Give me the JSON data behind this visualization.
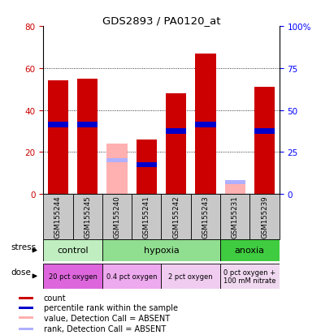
{
  "title": "GDS2893 / PA0120_at",
  "samples": [
    "GSM155244",
    "GSM155245",
    "GSM155240",
    "GSM155241",
    "GSM155242",
    "GSM155243",
    "GSM155231",
    "GSM155239"
  ],
  "count_values": [
    54,
    55,
    0,
    26,
    48,
    67,
    0,
    51
  ],
  "rank_values": [
    33,
    33,
    0,
    14,
    30,
    33,
    0,
    30
  ],
  "absent_count": [
    0,
    0,
    24,
    0,
    0,
    0,
    5,
    0
  ],
  "absent_rank": [
    0,
    0,
    16,
    0,
    0,
    0,
    5.5,
    0
  ],
  "ylim_left": [
    0,
    80
  ],
  "ylim_right": [
    0,
    100
  ],
  "yticks_left": [
    0,
    20,
    40,
    60,
    80
  ],
  "yticks_right": [
    0,
    25,
    50,
    75,
    100
  ],
  "ytick_labels_left": [
    "0",
    "20",
    "40",
    "60",
    "80"
  ],
  "ytick_labels_right": [
    "0",
    "25",
    "50",
    "75",
    "100%"
  ],
  "stress_groups": [
    {
      "label": "control",
      "start": 0,
      "end": 2,
      "color": "#c0eec0"
    },
    {
      "label": "hypoxia",
      "start": 2,
      "end": 6,
      "color": "#90de90"
    },
    {
      "label": "anoxia",
      "start": 6,
      "end": 8,
      "color": "#40cc40"
    }
  ],
  "dose_groups": [
    {
      "label": "20 pct oxygen",
      "start": 0,
      "end": 2,
      "color": "#dd66dd"
    },
    {
      "label": "0.4 pct oxygen",
      "start": 2,
      "end": 4,
      "color": "#eeaaee"
    },
    {
      "label": "2 pct oxygen",
      "start": 4,
      "end": 6,
      "color": "#f0ccf0"
    },
    {
      "label": "0 pct oxygen +\n100 mM nitrate",
      "start": 6,
      "end": 8,
      "color": "#f0d8f0"
    }
  ],
  "bar_color_count": "#cc0000",
  "bar_color_rank": "#0000cc",
  "bar_color_absent_count": "#ffb0b0",
  "bar_color_absent_rank": "#b0b0ff",
  "sample_bg_color": "#c8c8c8",
  "legend_items": [
    {
      "label": "count",
      "color": "#cc0000"
    },
    {
      "label": "percentile rank within the sample",
      "color": "#0000cc"
    },
    {
      "label": "value, Detection Call = ABSENT",
      "color": "#ffb0b0"
    },
    {
      "label": "rank, Detection Call = ABSENT",
      "color": "#b0b0ff"
    }
  ],
  "bar_width": 0.7,
  "rank_bar_height": 2.5,
  "absent_rank_bar_height": 2.0
}
